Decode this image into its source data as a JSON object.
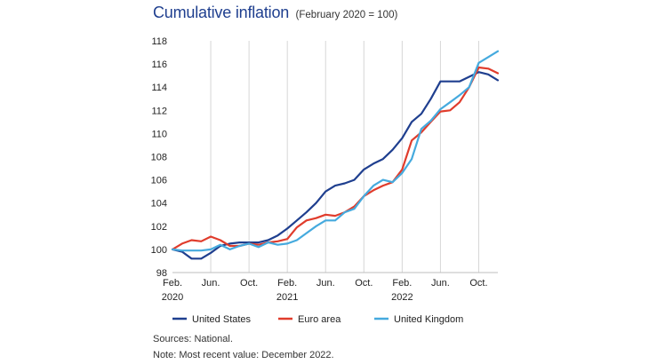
{
  "title": "Cumulative inflation",
  "subtitle": "(February 2020 = 100)",
  "sources": "Sources: National.",
  "note": "Note: Most recent value: December 2022.",
  "chart_data": {
    "type": "line",
    "x": [
      "2020-02",
      "2020-03",
      "2020-04",
      "2020-05",
      "2020-06",
      "2020-07",
      "2020-08",
      "2020-09",
      "2020-10",
      "2020-11",
      "2020-12",
      "2021-01",
      "2021-02",
      "2021-03",
      "2021-04",
      "2021-05",
      "2021-06",
      "2021-07",
      "2021-08",
      "2021-09",
      "2021-10",
      "2021-11",
      "2021-12",
      "2022-01",
      "2022-02",
      "2022-03",
      "2022-04",
      "2022-05",
      "2022-06",
      "2022-07",
      "2022-08",
      "2022-09",
      "2022-10",
      "2022-11",
      "2022-12"
    ],
    "ylim": [
      98,
      118
    ],
    "yticks": [
      98,
      100,
      102,
      104,
      106,
      108,
      110,
      112,
      114,
      116,
      118
    ],
    "xticks": [
      {
        "x": "2020-02",
        "line1": "Feb.",
        "line2": "2020"
      },
      {
        "x": "2020-06",
        "line1": "Jun.",
        "line2": ""
      },
      {
        "x": "2020-10",
        "line1": "Oct.",
        "line2": ""
      },
      {
        "x": "2021-02",
        "line1": "Feb.",
        "line2": "2021"
      },
      {
        "x": "2021-06",
        "line1": "Jun.",
        "line2": ""
      },
      {
        "x": "2021-10",
        "line1": "Oct.",
        "line2": ""
      },
      {
        "x": "2022-02",
        "line1": "Feb.",
        "line2": "2022"
      },
      {
        "x": "2022-06",
        "line1": "Jun.",
        "line2": ""
      },
      {
        "x": "2022-10",
        "line1": "Oct.",
        "line2": ""
      }
    ],
    "grid": "vertical",
    "legend_position": "bottom",
    "series": [
      {
        "name": "United States",
        "color": "#1f3f8f",
        "values": [
          100.0,
          99.8,
          99.2,
          99.2,
          99.7,
          100.3,
          100.5,
          100.6,
          100.6,
          100.6,
          100.8,
          101.2,
          101.8,
          102.5,
          103.2,
          104.0,
          105.0,
          105.5,
          105.7,
          106.0,
          106.9,
          107.4,
          107.8,
          108.6,
          109.6,
          111.0,
          111.7,
          113.0,
          114.5,
          114.5,
          114.5,
          114.9,
          115.3,
          115.1,
          114.6
        ]
      },
      {
        "name": "Euro area",
        "color": "#e03c2c",
        "values": [
          100.0,
          100.5,
          100.8,
          100.7,
          101.1,
          100.8,
          100.3,
          100.3,
          100.5,
          100.4,
          100.6,
          100.7,
          100.9,
          101.9,
          102.5,
          102.7,
          103.0,
          102.9,
          103.2,
          103.7,
          104.6,
          105.1,
          105.5,
          105.8,
          106.9,
          109.4,
          110.1,
          111.0,
          111.9,
          112.0,
          112.7,
          114.0,
          115.7,
          115.6,
          115.2
        ]
      },
      {
        "name": "United Kingdom",
        "color": "#45aade",
        "values": [
          100.0,
          99.9,
          99.9,
          99.9,
          100.0,
          100.4,
          100.0,
          100.3,
          100.5,
          100.2,
          100.6,
          100.4,
          100.5,
          100.8,
          101.4,
          102.0,
          102.5,
          102.5,
          103.2,
          103.5,
          104.6,
          105.5,
          106.0,
          105.8,
          106.6,
          107.8,
          110.4,
          111.1,
          112.1,
          112.7,
          113.3,
          114.0,
          116.1,
          116.6,
          117.1
        ]
      }
    ]
  }
}
